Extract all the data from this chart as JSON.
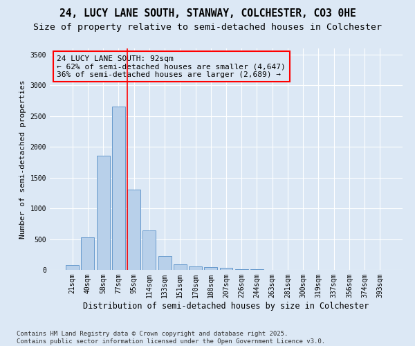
{
  "title1": "24, LUCY LANE SOUTH, STANWAY, COLCHESTER, CO3 0HE",
  "title2": "Size of property relative to semi-detached houses in Colchester",
  "xlabel": "Distribution of semi-detached houses by size in Colchester",
  "ylabel": "Number of semi-detached properties",
  "bar_labels": [
    "21sqm",
    "40sqm",
    "58sqm",
    "77sqm",
    "95sqm",
    "114sqm",
    "133sqm",
    "151sqm",
    "170sqm",
    "188sqm",
    "207sqm",
    "226sqm",
    "244sqm",
    "263sqm",
    "281sqm",
    "300sqm",
    "319sqm",
    "337sqm",
    "356sqm",
    "374sqm",
    "393sqm"
  ],
  "bar_values": [
    80,
    530,
    1860,
    2650,
    1310,
    640,
    220,
    90,
    60,
    50,
    35,
    15,
    8,
    5,
    3,
    2,
    1,
    1,
    0,
    0,
    0
  ],
  "bar_color": "#b8d0ea",
  "bar_edge_color": "#6699cc",
  "annotation_line1": "24 LUCY LANE SOUTH: 92sqm",
  "annotation_line2": "← 62% of semi-detached houses are smaller (4,647)",
  "annotation_line3": "36% of semi-detached houses are larger (2,689) →",
  "property_line_x": 3.57,
  "ylim": [
    0,
    3600
  ],
  "yticks": [
    0,
    500,
    1000,
    1500,
    2000,
    2500,
    3000,
    3500
  ],
  "footnote1": "Contains HM Land Registry data © Crown copyright and database right 2025.",
  "footnote2": "Contains public sector information licensed under the Open Government Licence v3.0.",
  "bg_color": "#dce8f5",
  "grid_color": "#ffffff",
  "title1_fontsize": 10.5,
  "title2_fontsize": 9.5,
  "xlabel_fontsize": 8.5,
  "ylabel_fontsize": 8,
  "tick_fontsize": 7,
  "annotation_fontsize": 8,
  "footnote_fontsize": 6.5
}
